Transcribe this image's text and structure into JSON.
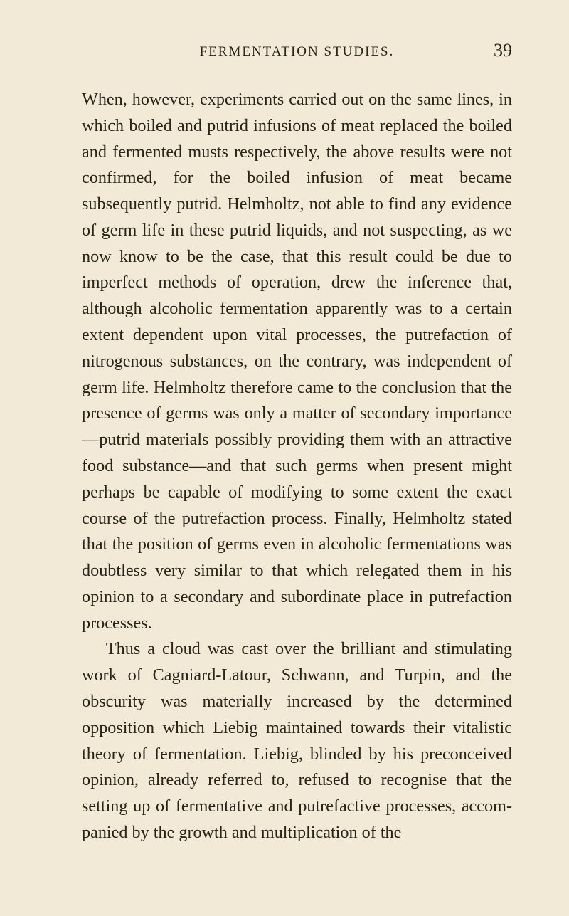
{
  "header": {
    "running_head": "FERMENTATION STUDIES.",
    "page_number": "39"
  },
  "paragraphs": [
    "When, however, experiments carried out on the same lines, in which boiled and putrid infusions of meat replaced the boiled and fermented musts respectively, the above results were not confirmed, for the boiled infusion of meat became subsequently putrid. Helm­holtz, not able to find any evidence of germ life in these putrid liquids, and not suspecting, as we now know to be the case, that this result could be due to imperfect methods of operation, drew the inference that, although alcoholic fermentation apparently was to a certain extent dependent upon vital processes, the putrefaction of nitrogenous substances, on the contrary, was independent of germ life. Helmholtz therefore came to the conclusion that the presence of germs was only a matter of secondary importance—putrid materials possibly providing them with an attractive food substance—and that such germs when present might perhaps be capable of modifying to some ex­tent the exact course of the putrefaction process. Finally, Helmholtz stated that the position of germs even in alcoholic fermentations was doubtless very similar to that which relegated them in his opinion to a secondary and subordinate place in putrefaction processes.",
    "Thus a cloud was cast over the brilliant and stimulating work of Cagniard-Latour, Schwann, and Turpin, and the obscurity was materially increased by the determined opposition which Liebig maintained towards their vitalistic theory of fermentation. Liebig, blinded by his preconceived opinion, already referred to, refused to recognise that the setting up of fermentative and putrefactive processes, accom­panied by the growth and multiplication of the"
  ]
}
